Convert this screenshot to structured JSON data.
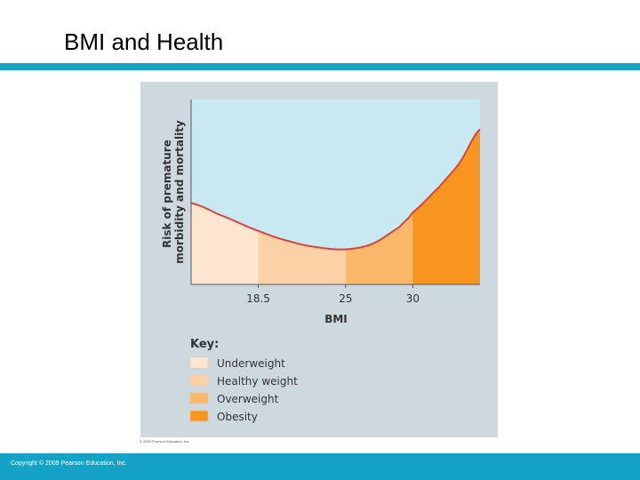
{
  "slide": {
    "title": "BMI and Health",
    "footer": "Copyright © 2009 Pearson Education, Inc.",
    "figure_credit": "© 2009 Pearson Education, Inc."
  },
  "colors": {
    "accent_bar": "#14a3c7",
    "panel_bg": "#cdd8df",
    "sky": "#c8e8f2",
    "curve": "#d8453c",
    "underweight": "#fde5cf",
    "healthy": "#fdd1a6",
    "overweight": "#fbb86a",
    "obesity": "#f7951e"
  },
  "chart_data": {
    "type": "area",
    "title": "",
    "xlabel": "BMI",
    "ylabel": "Risk of premature morbidity and mortality",
    "xlim": [
      13.5,
      35
    ],
    "ylim": [
      0,
      1
    ],
    "x_ticks": [
      "18.5",
      "25",
      "30"
    ],
    "x_tick_values": [
      18.5,
      25,
      30
    ],
    "grid": false,
    "legend_position": "bottom-left",
    "key_title": "Key:",
    "curve": {
      "x": [
        13.5,
        15.5,
        18.5,
        21,
        23,
        25,
        27,
        29,
        30,
        32,
        33.5,
        35
      ],
      "y": [
        0.44,
        0.38,
        0.29,
        0.23,
        0.2,
        0.19,
        0.22,
        0.31,
        0.39,
        0.53,
        0.66,
        0.84
      ]
    },
    "regions": [
      {
        "name": "Underweight",
        "from": 13.5,
        "to": 18.5,
        "color": "#fde5cf"
      },
      {
        "name": "Healthy weight",
        "from": 18.5,
        "to": 25,
        "color": "#fdd1a6"
      },
      {
        "name": "Overweight",
        "from": 25,
        "to": 30,
        "color": "#fbb86a"
      },
      {
        "name": "Obesity",
        "from": 30,
        "to": 35,
        "color": "#f7951e"
      }
    ]
  }
}
